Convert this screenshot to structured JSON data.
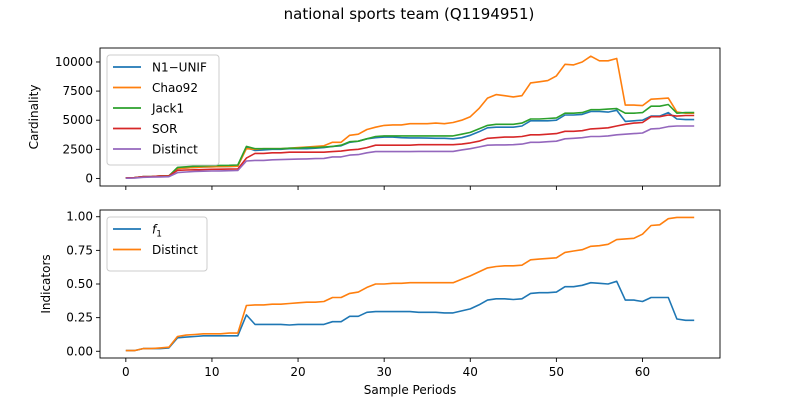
{
  "figure": {
    "title": "national sports team (Q1194951)"
  },
  "chart_data": [
    {
      "type": "line",
      "ylabel": "Cardinality",
      "xlabel": "",
      "xlim": [
        -3,
        69
      ],
      "ylim": [
        -650,
        11200
      ],
      "xticks": [
        0,
        10,
        20,
        30,
        40,
        50,
        60
      ],
      "yticks": [
        0,
        2500,
        5000,
        7500,
        10000
      ],
      "ytick_labels": [
        "0",
        "2500",
        "5000",
        "7500",
        "10000"
      ],
      "show_xtick_labels": false,
      "legend": "top-left",
      "x": [
        0,
        1,
        2,
        3,
        4,
        5,
        6,
        7,
        8,
        9,
        10,
        11,
        12,
        13,
        14,
        15,
        16,
        17,
        18,
        19,
        20,
        21,
        22,
        23,
        24,
        25,
        26,
        27,
        28,
        29,
        30,
        31,
        32,
        33,
        34,
        35,
        36,
        37,
        38,
        39,
        40,
        41,
        42,
        43,
        44,
        45,
        46,
        47,
        48,
        49,
        50,
        51,
        52,
        53,
        54,
        55,
        56,
        57,
        58,
        59,
        60,
        61,
        62,
        63,
        64,
        65,
        66
      ],
      "series": [
        {
          "name": "N1−UNIF",
          "color": "#1f77b4",
          "values": [
            50,
            60,
            150,
            170,
            200,
            220,
            850,
            900,
            950,
            980,
            1000,
            1020,
            1030,
            1050,
            2650,
            2400,
            2450,
            2500,
            2500,
            2550,
            2550,
            2550,
            2600,
            2650,
            2750,
            2800,
            3100,
            3200,
            3400,
            3500,
            3550,
            3550,
            3500,
            3480,
            3480,
            3460,
            3450,
            3450,
            3400,
            3500,
            3700,
            4000,
            4350,
            4400,
            4400,
            4400,
            4500,
            4950,
            4950,
            4950,
            5000,
            5450,
            5450,
            5500,
            5750,
            5750,
            5700,
            5850,
            4900,
            4950,
            5000,
            5350,
            5350,
            5650,
            5100,
            5050,
            5050
          ]
        },
        {
          "name": "Chao92",
          "color": "#ff7f0e",
          "values": [
            50,
            60,
            150,
            170,
            200,
            220,
            850,
            900,
            950,
            980,
            1000,
            1020,
            1030,
            1050,
            2550,
            2500,
            2550,
            2550,
            2550,
            2600,
            2650,
            2700,
            2750,
            2800,
            3100,
            3100,
            3700,
            3800,
            4200,
            4400,
            4550,
            4600,
            4600,
            4700,
            4700,
            4700,
            4750,
            4700,
            4800,
            5000,
            5300,
            6000,
            6900,
            7200,
            7100,
            7000,
            7100,
            8200,
            8300,
            8400,
            8800,
            9800,
            9750,
            10000,
            10500,
            10100,
            10100,
            10300,
            6300,
            6300,
            6250,
            6800,
            6850,
            6900,
            5700,
            5600,
            5600
          ]
        },
        {
          "name": "Jack1",
          "color": "#2ca02c",
          "values": [
            50,
            60,
            150,
            170,
            200,
            220,
            950,
            1000,
            1050,
            1080,
            1100,
            1120,
            1130,
            1150,
            2750,
            2550,
            2550,
            2550,
            2550,
            2600,
            2600,
            2650,
            2650,
            2700,
            2750,
            2850,
            3150,
            3200,
            3400,
            3600,
            3650,
            3650,
            3650,
            3650,
            3650,
            3650,
            3650,
            3650,
            3650,
            3800,
            3950,
            4250,
            4550,
            4650,
            4650,
            4650,
            4750,
            5100,
            5100,
            5150,
            5200,
            5600,
            5600,
            5650,
            5900,
            5900,
            5950,
            6000,
            5600,
            5600,
            5650,
            6200,
            6200,
            6350,
            5600,
            5650,
            5650
          ]
        },
        {
          "name": "SOR",
          "color": "#d62728",
          "values": [
            50,
            60,
            150,
            170,
            200,
            220,
            700,
            720,
            740,
            760,
            780,
            790,
            800,
            810,
            1750,
            2150,
            2150,
            2200,
            2200,
            2250,
            2250,
            2250,
            2250,
            2250,
            2300,
            2350,
            2450,
            2500,
            2650,
            2850,
            2850,
            2850,
            2850,
            2850,
            2900,
            2900,
            2900,
            2900,
            2900,
            2950,
            3050,
            3200,
            3450,
            3500,
            3550,
            3550,
            3600,
            3750,
            3750,
            3800,
            3850,
            4050,
            4050,
            4100,
            4250,
            4300,
            4350,
            4500,
            4650,
            4750,
            4800,
            5300,
            5300,
            5450,
            5350,
            5400,
            5400
          ]
        },
        {
          "name": "Distinct",
          "color": "#9467bd",
          "values": [
            20,
            30,
            100,
            110,
            130,
            150,
            500,
            550,
            600,
            620,
            640,
            650,
            660,
            680,
            1500,
            1550,
            1550,
            1600,
            1620,
            1640,
            1660,
            1680,
            1700,
            1720,
            1850,
            1850,
            2000,
            2050,
            2200,
            2300,
            2300,
            2300,
            2300,
            2300,
            2320,
            2320,
            2320,
            2320,
            2320,
            2450,
            2550,
            2700,
            2850,
            2880,
            2880,
            2900,
            2950,
            3100,
            3100,
            3150,
            3200,
            3400,
            3450,
            3500,
            3600,
            3600,
            3650,
            3750,
            3800,
            3850,
            3900,
            4250,
            4300,
            4450,
            4500,
            4500,
            4500
          ]
        }
      ]
    },
    {
      "type": "line",
      "ylabel": "Indicators",
      "xlabel": "Sample Periods",
      "xlim": [
        -3,
        69
      ],
      "ylim": [
        -0.05,
        1.05
      ],
      "xticks": [
        0,
        10,
        20,
        30,
        40,
        50,
        60
      ],
      "xtick_labels": [
        "0",
        "10",
        "20",
        "30",
        "40",
        "50",
        "60"
      ],
      "yticks": [
        0,
        0.25,
        0.5,
        0.75,
        1.0
      ],
      "ytick_labels": [
        "0.00",
        "0.25",
        "0.50",
        "0.75",
        "1.00"
      ],
      "show_xtick_labels": true,
      "legend": "top-left",
      "x": [
        0,
        1,
        2,
        3,
        4,
        5,
        6,
        7,
        8,
        9,
        10,
        11,
        12,
        13,
        14,
        15,
        16,
        17,
        18,
        19,
        20,
        21,
        22,
        23,
        24,
        25,
        26,
        27,
        28,
        29,
        30,
        31,
        32,
        33,
        34,
        35,
        36,
        37,
        38,
        39,
        40,
        41,
        42,
        43,
        44,
        45,
        46,
        47,
        48,
        49,
        50,
        51,
        52,
        53,
        54,
        55,
        56,
        57,
        58,
        59,
        60,
        61,
        62,
        63,
        64,
        65,
        66
      ],
      "series": [
        {
          "name": "f1",
          "label_main": "f",
          "label_sub": "1",
          "color": "#1f77b4",
          "values": [
            0.005,
            0.005,
            0.02,
            0.02,
            0.02,
            0.025,
            0.1,
            0.105,
            0.11,
            0.115,
            0.115,
            0.115,
            0.115,
            0.115,
            0.27,
            0.2,
            0.2,
            0.2,
            0.2,
            0.195,
            0.2,
            0.2,
            0.2,
            0.2,
            0.22,
            0.22,
            0.26,
            0.26,
            0.29,
            0.295,
            0.295,
            0.295,
            0.295,
            0.295,
            0.29,
            0.29,
            0.29,
            0.285,
            0.285,
            0.3,
            0.315,
            0.345,
            0.38,
            0.39,
            0.39,
            0.385,
            0.39,
            0.43,
            0.435,
            0.435,
            0.44,
            0.48,
            0.48,
            0.49,
            0.51,
            0.505,
            0.5,
            0.52,
            0.38,
            0.38,
            0.37,
            0.4,
            0.4,
            0.4,
            0.24,
            0.23,
            0.23
          ]
        },
        {
          "name": "Distinct",
          "color": "#ff7f0e",
          "values": [
            0.005,
            0.005,
            0.02,
            0.02,
            0.025,
            0.03,
            0.11,
            0.12,
            0.125,
            0.13,
            0.13,
            0.13,
            0.135,
            0.135,
            0.34,
            0.345,
            0.345,
            0.35,
            0.35,
            0.355,
            0.36,
            0.365,
            0.365,
            0.37,
            0.4,
            0.4,
            0.43,
            0.44,
            0.475,
            0.5,
            0.5,
            0.505,
            0.505,
            0.51,
            0.51,
            0.51,
            0.51,
            0.51,
            0.51,
            0.535,
            0.56,
            0.59,
            0.62,
            0.63,
            0.635,
            0.635,
            0.64,
            0.68,
            0.685,
            0.69,
            0.695,
            0.735,
            0.745,
            0.755,
            0.78,
            0.785,
            0.795,
            0.83,
            0.835,
            0.84,
            0.87,
            0.935,
            0.94,
            0.985,
            0.995,
            0.995,
            0.995
          ]
        }
      ]
    }
  ]
}
